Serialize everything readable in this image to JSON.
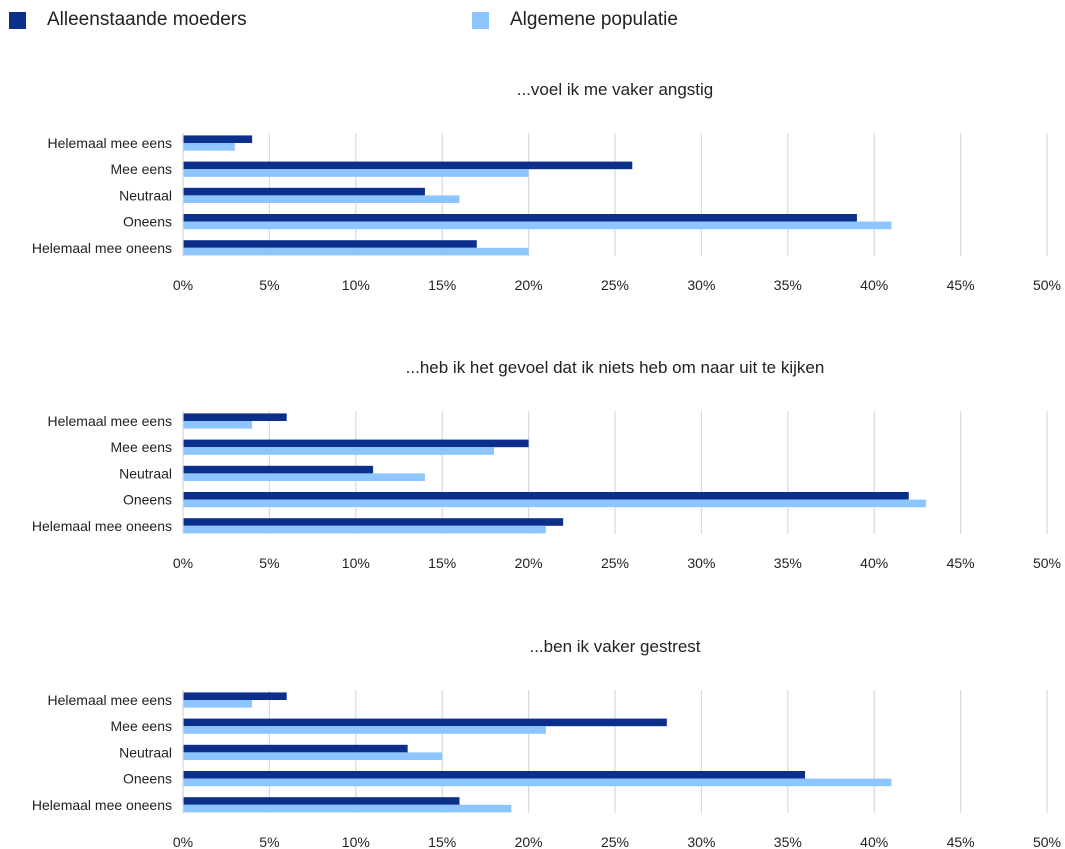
{
  "colors": {
    "series_1": "#0b2f8a",
    "series_2": "#8cc5ff",
    "grid": "#d9d9d9",
    "text": "#222222"
  },
  "legend": {
    "position": "top",
    "items": [
      {
        "name": "Alleenstaande moeders",
        "color": "#0b2f8a"
      },
      {
        "name": "Algemene populatie",
        "color": "#8cc5ff"
      }
    ]
  },
  "chart_data": [
    {
      "type": "bar",
      "orientation": "horizontal",
      "title": "...voel ik me vaker angstig",
      "categories": [
        "Helemaal mee eens",
        "Mee eens",
        "Neutraal",
        "Oneens",
        "Helemaal mee oneens"
      ],
      "series": [
        {
          "name": "Alleenstaande moeders",
          "values": [
            4,
            26,
            14,
            39,
            17
          ]
        },
        {
          "name": "Algemene populatie",
          "values": [
            3,
            20,
            16,
            41,
            20
          ]
        }
      ],
      "xlim": [
        0,
        50
      ],
      "xticks": [
        "0%",
        "5%",
        "10%",
        "15%",
        "20%",
        "25%",
        "30%",
        "35%",
        "40%",
        "45%",
        "50%"
      ],
      "grid": "vertical"
    },
    {
      "type": "bar",
      "orientation": "horizontal",
      "title": "...heb ik het gevoel dat ik niets heb om naar uit te kijken",
      "categories": [
        "Helemaal mee eens",
        "Mee eens",
        "Neutraal",
        "Oneens",
        "Helemaal mee oneens"
      ],
      "series": [
        {
          "name": "Alleenstaande moeders",
          "values": [
            6,
            20,
            11,
            42,
            22
          ]
        },
        {
          "name": "Algemene populatie",
          "values": [
            4,
            18,
            14,
            43,
            21
          ]
        }
      ],
      "xlim": [
        0,
        50
      ],
      "xticks": [
        "0%",
        "5%",
        "10%",
        "15%",
        "20%",
        "25%",
        "30%",
        "35%",
        "40%",
        "45%",
        "50%"
      ],
      "grid": "vertical"
    },
    {
      "type": "bar",
      "orientation": "horizontal",
      "title": "...ben ik vaker gestrest",
      "categories": [
        "Helemaal mee eens",
        "Mee eens",
        "Neutraal",
        "Oneens",
        "Helemaal mee oneens"
      ],
      "series": [
        {
          "name": "Alleenstaande moeders",
          "values": [
            6,
            28,
            13,
            36,
            16
          ]
        },
        {
          "name": "Algemene populatie",
          "values": [
            4,
            21,
            15,
            41,
            19
          ]
        }
      ],
      "xlim": [
        0,
        50
      ],
      "xticks": [
        "0%",
        "5%",
        "10%",
        "15%",
        "20%",
        "25%",
        "30%",
        "35%",
        "40%",
        "45%",
        "50%"
      ],
      "grid": "vertical"
    }
  ]
}
